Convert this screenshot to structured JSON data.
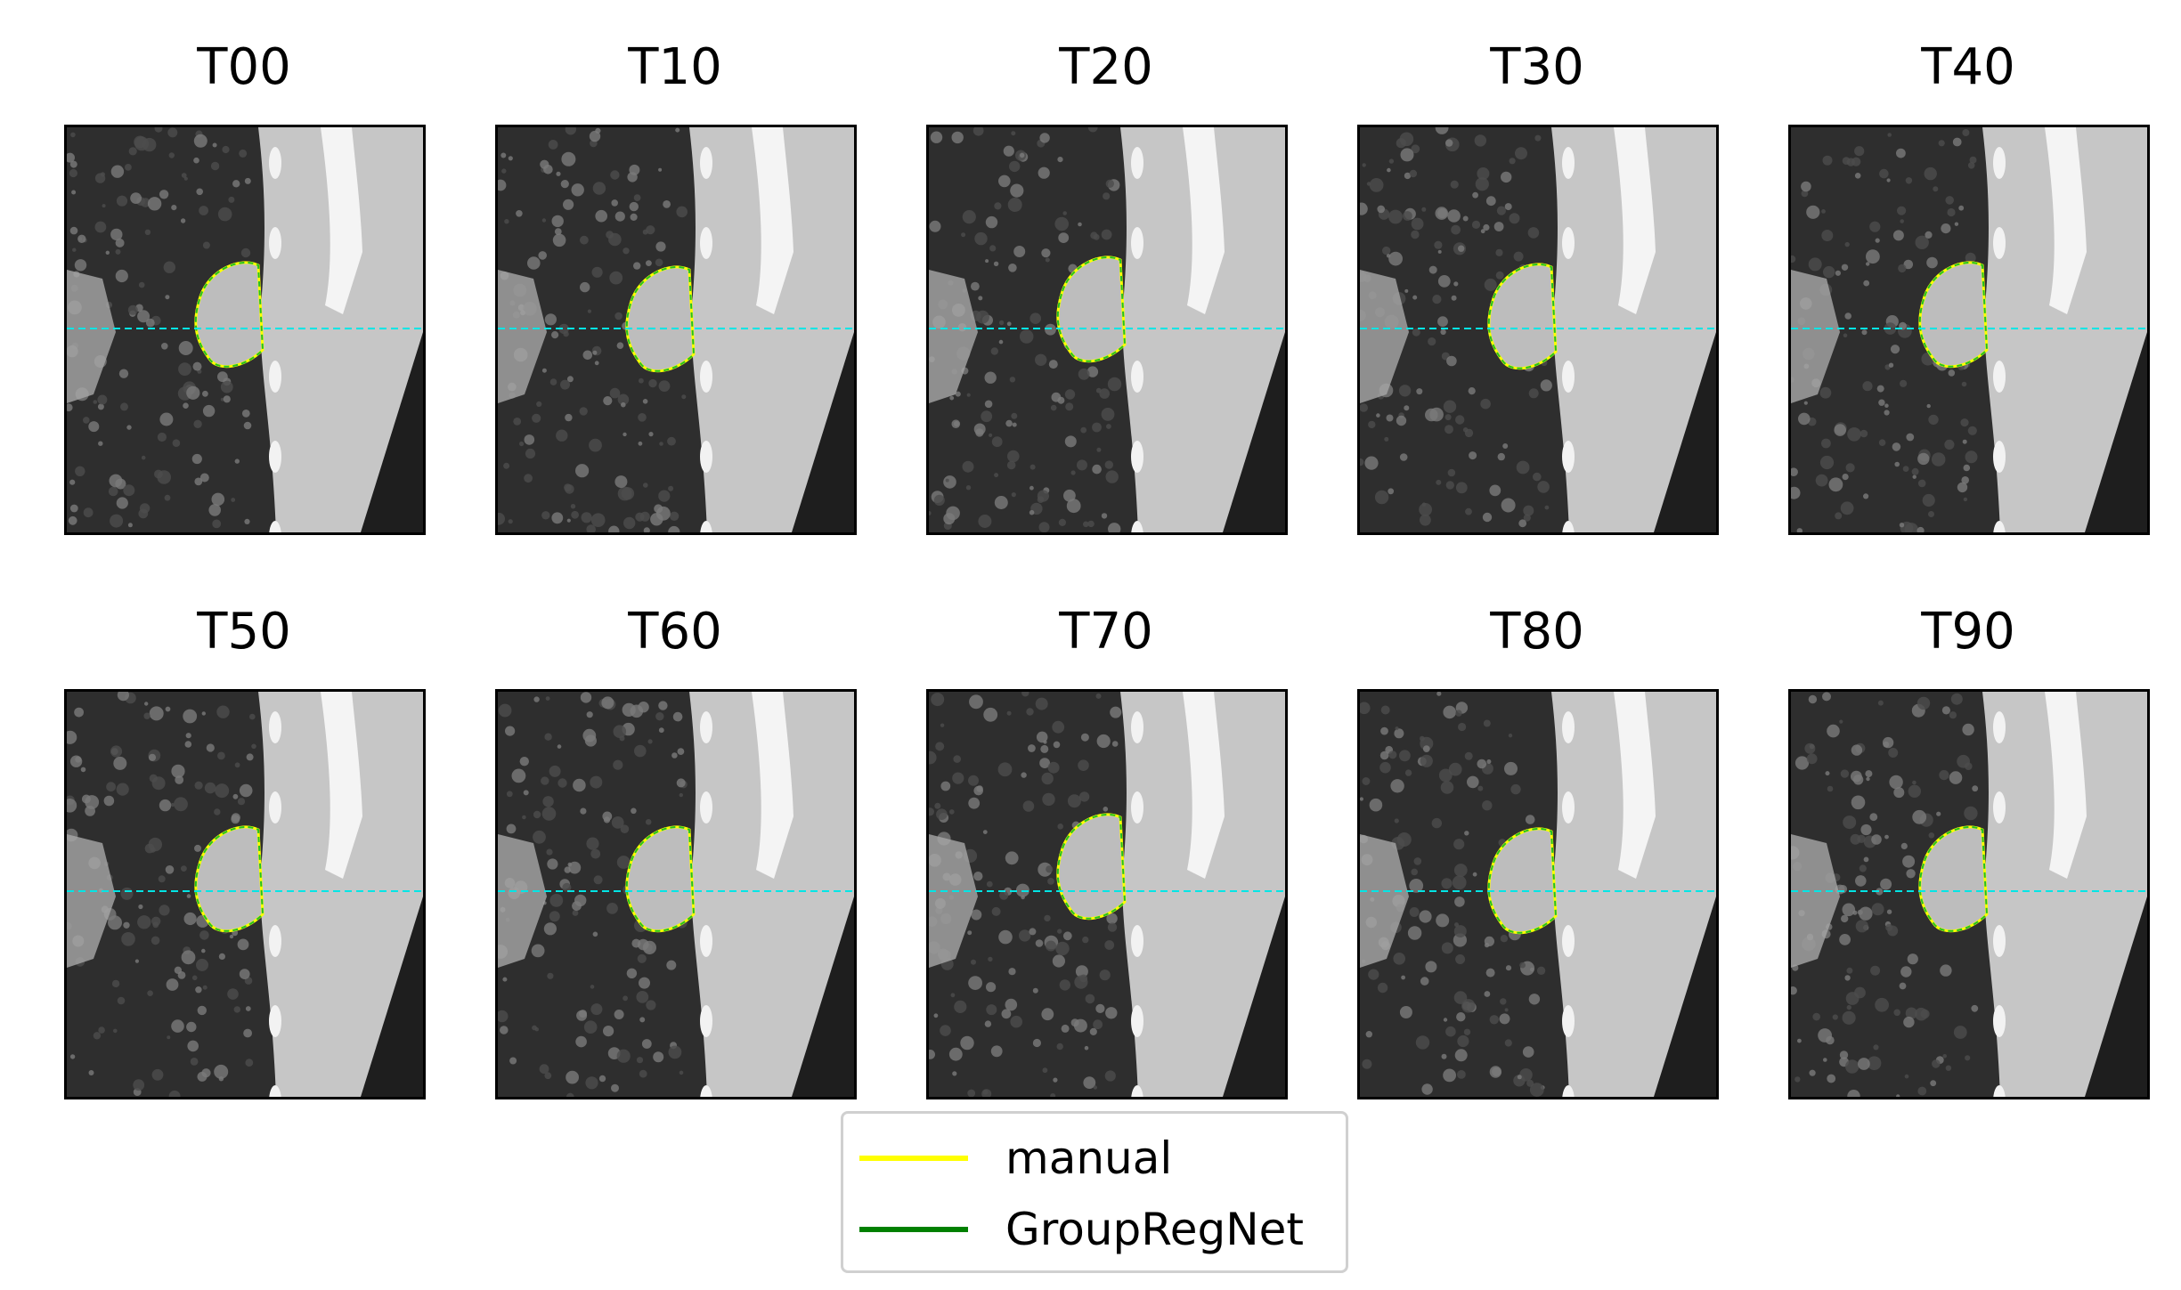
{
  "figure": {
    "panels": [
      {
        "title": "T00"
      },
      {
        "title": "T10"
      },
      {
        "title": "T20"
      },
      {
        "title": "T30"
      },
      {
        "title": "T40"
      },
      {
        "title": "T50"
      },
      {
        "title": "T60"
      },
      {
        "title": "T70"
      },
      {
        "title": "T80"
      },
      {
        "title": "T90"
      }
    ],
    "reference_line_color": "#00e5e5",
    "legend": [
      {
        "label": "manual",
        "color": "#ffff00"
      },
      {
        "label": "GroupRegNet",
        "color": "#008000"
      }
    ]
  }
}
